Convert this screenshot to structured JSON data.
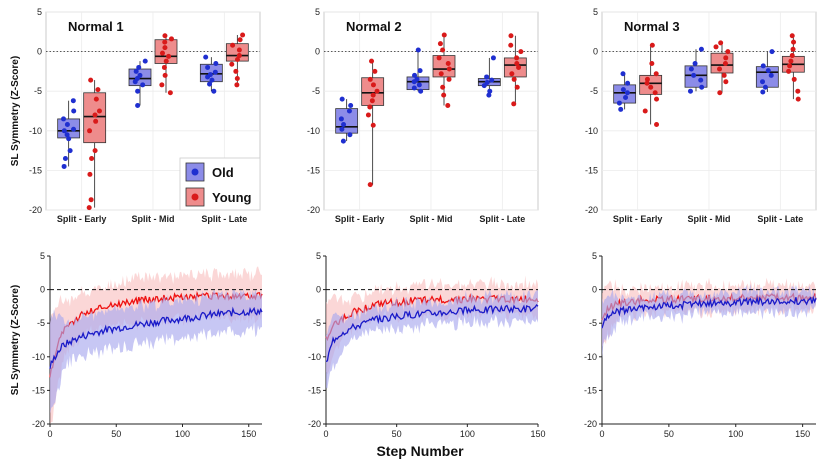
{
  "figure": {
    "top_ylabel": "SL Symmetry (Z-Score)",
    "bottom_ylabel": "SL Symmetry (Z-Score)",
    "bottom_xlabel": "Step Number",
    "legend": [
      {
        "label": "Old",
        "color": "#4b4bd6"
      },
      {
        "label": "Young",
        "color": "#e04545"
      }
    ]
  },
  "colors": {
    "old_point": "#1f2fd0",
    "old_box": "#8c8ce8",
    "young_point": "#d91a1a",
    "young_box": "#ee8c8c",
    "old_line": "#1a1ac8",
    "old_band": "#a9a9ee",
    "young_line": "#ee1111",
    "young_band": "#f7b7b7"
  },
  "chart_data": [
    {
      "type": "box",
      "title": "Normal 1",
      "ylim": [
        -20,
        5
      ],
      "yticks": [
        5,
        0,
        -5,
        -10,
        -15,
        -20
      ],
      "reference_line": 0,
      "categories": [
        "Split - Early",
        "Split - Mid",
        "Split - Late"
      ],
      "series": [
        {
          "name": "Old",
          "boxes": [
            {
              "min": -14.5,
              "q1": -10.9,
              "median": -10.0,
              "q3": -8.5,
              "max": -6.2,
              "points": [
                -6.2,
                -7.5,
                -8.5,
                -9.2,
                -9.8,
                -10.0,
                -10.5,
                -11.0,
                -12.5,
                -13.5,
                -14.5
              ]
            },
            {
              "min": -6.8,
              "q1": -4.3,
              "median": -3.4,
              "q3": -2.2,
              "max": -1.2,
              "points": [
                -1.2,
                -2.0,
                -2.5,
                -3.0,
                -3.4,
                -3.8,
                -4.2,
                -5.0,
                -6.8
              ]
            },
            {
              "min": -5.0,
              "q1": -3.8,
              "median": -2.8,
              "q3": -1.6,
              "max": -0.7,
              "points": [
                -0.7,
                -1.5,
                -2.0,
                -2.6,
                -2.9,
                -3.2,
                -3.6,
                -4.1,
                -5.0
              ]
            }
          ]
        },
        {
          "name": "Young",
          "boxes": [
            {
              "min": -19.7,
              "q1": -11.5,
              "median": -8.2,
              "q3": -5.2,
              "max": -3.6,
              "points": [
                -3.6,
                -4.8,
                -6.0,
                -7.5,
                -8.0,
                -8.8,
                -10.0,
                -12.5,
                -13.5,
                -15.5,
                -18.7,
                -19.7
              ]
            },
            {
              "min": -5.2,
              "q1": -1.5,
              "median": -0.6,
              "q3": 1.5,
              "max": 2.0,
              "points": [
                2.0,
                1.6,
                1.2,
                0.5,
                -0.2,
                -0.6,
                -1.2,
                -2.0,
                -3.0,
                -4.2,
                -5.2
              ]
            },
            {
              "min": -4.2,
              "q1": -1.2,
              "median": -0.5,
              "q3": 1.0,
              "max": 2.1,
              "points": [
                2.1,
                1.5,
                0.8,
                0.2,
                -0.5,
                -1.0,
                -1.6,
                -2.5,
                -3.4,
                -4.2
              ]
            }
          ]
        }
      ]
    },
    {
      "type": "box",
      "title": "Normal 2",
      "ylim": [
        -20,
        5
      ],
      "yticks": [
        5,
        0,
        -5,
        -10,
        -15,
        -20
      ],
      "reference_line": 0,
      "categories": [
        "Split - Early",
        "Split - Mid",
        "Split - Late"
      ],
      "series": [
        {
          "name": "Old",
          "boxes": [
            {
              "min": -11.3,
              "q1": -10.3,
              "median": -9.5,
              "q3": -7.2,
              "max": -6.0,
              "points": [
                -6.0,
                -6.8,
                -7.5,
                -8.5,
                -9.2,
                -9.8,
                -10.5,
                -11.3
              ]
            },
            {
              "min": -5.0,
              "q1": -4.8,
              "median": -3.8,
              "q3": -3.2,
              "max": 0.2,
              "points": [
                0.2,
                -2.4,
                -3.0,
                -3.5,
                -3.8,
                -4.2,
                -4.6,
                -5.0
              ]
            },
            {
              "min": -5.5,
              "q1": -4.3,
              "median": -3.8,
              "q3": -3.4,
              "max": -0.8,
              "points": [
                -0.8,
                -3.2,
                -3.6,
                -3.9,
                -4.3,
                -5.0,
                -5.5
              ]
            }
          ]
        },
        {
          "name": "Young",
          "boxes": [
            {
              "min": -16.8,
              "q1": -6.8,
              "median": -5.2,
              "q3": -3.3,
              "max": -1.2,
              "points": [
                -1.2,
                -2.5,
                -3.5,
                -4.2,
                -5.0,
                -5.5,
                -6.2,
                -7.0,
                -8.0,
                -9.3,
                -16.8
              ]
            },
            {
              "min": -6.8,
              "q1": -3.2,
              "median": -2.2,
              "q3": -0.5,
              "max": 2.1,
              "points": [
                2.1,
                1.0,
                0.2,
                -0.8,
                -1.5,
                -2.2,
                -2.8,
                -3.5,
                -4.5,
                -5.5,
                -6.8
              ]
            },
            {
              "min": -6.6,
              "q1": -3.2,
              "median": -1.7,
              "q3": -0.8,
              "max": 2.0,
              "points": [
                2.0,
                0.8,
                0.0,
                -0.8,
                -1.5,
                -2.0,
                -2.8,
                -3.5,
                -4.5,
                -6.6
              ]
            }
          ]
        }
      ]
    },
    {
      "type": "box",
      "title": "Normal 3",
      "ylim": [
        -20,
        5
      ],
      "yticks": [
        5,
        0,
        -5,
        -10,
        -15,
        -20
      ],
      "reference_line": 0,
      "categories": [
        "Split - Early",
        "Split - Mid",
        "Split - Late"
      ],
      "series": [
        {
          "name": "Old",
          "boxes": [
            {
              "min": -7.3,
              "q1": -6.5,
              "median": -5.2,
              "q3": -4.2,
              "max": -2.8,
              "points": [
                -2.8,
                -4.0,
                -4.8,
                -5.2,
                -5.8,
                -6.5,
                -7.3
              ]
            },
            {
              "min": -5.0,
              "q1": -4.5,
              "median": -3.0,
              "q3": -1.8,
              "max": 0.3,
              "points": [
                0.3,
                -1.5,
                -2.2,
                -3.0,
                -3.6,
                -4.5,
                -5.0
              ]
            },
            {
              "min": -5.1,
              "q1": -4.5,
              "median": -2.6,
              "q3": -1.9,
              "max": 0.0,
              "points": [
                0.0,
                -1.8,
                -2.4,
                -3.0,
                -3.8,
                -4.5,
                -5.1
              ]
            }
          ]
        },
        {
          "name": "Young",
          "boxes": [
            {
              "min": -9.2,
              "q1": -5.4,
              "median": -4.0,
              "q3": -3.0,
              "max": 0.8,
              "points": [
                0.8,
                -1.5,
                -2.8,
                -3.5,
                -4.0,
                -4.5,
                -5.2,
                -6.0,
                -7.5,
                -9.2
              ]
            },
            {
              "min": -5.2,
              "q1": -2.7,
              "median": -1.7,
              "q3": -0.2,
              "max": 1.1,
              "points": [
                1.1,
                0.6,
                0.0,
                -0.8,
                -1.5,
                -2.2,
                -3.0,
                -3.8,
                -5.2
              ]
            },
            {
              "min": -6.0,
              "q1": -2.6,
              "median": -1.6,
              "q3": -0.6,
              "max": 2.0,
              "points": [
                2.0,
                1.2,
                0.3,
                -0.5,
                -1.2,
                -1.8,
                -2.5,
                -3.5,
                -5.0,
                -6.0
              ]
            }
          ]
        }
      ]
    },
    {
      "type": "area",
      "ylim": [
        -20,
        5
      ],
      "xlim": [
        0,
        160
      ],
      "xticks": [
        0,
        50,
        100,
        150
      ],
      "yticks": [
        5,
        0,
        -5,
        -10,
        -15,
        -20
      ],
      "reference_line": 0,
      "series": [
        {
          "name": "Old",
          "x": [
            0,
            5,
            10,
            20,
            30,
            40,
            60,
            80,
            100,
            120,
            140,
            160
          ],
          "mean": [
            -11.5,
            -9.5,
            -8.3,
            -7.3,
            -6.6,
            -6.1,
            -5.4,
            -4.8,
            -4.3,
            -3.8,
            -3.4,
            -3.2
          ],
          "band": 2.8
        },
        {
          "name": "Young",
          "x": [
            0,
            5,
            10,
            20,
            30,
            40,
            60,
            80,
            100,
            120,
            140,
            160
          ],
          "mean": [
            -13.0,
            -8.5,
            -6.2,
            -4.3,
            -3.2,
            -2.5,
            -1.8,
            -1.3,
            -1.1,
            -1.0,
            -1.0,
            -1.0
          ],
          "band": 3.2
        }
      ]
    },
    {
      "type": "area",
      "ylim": [
        -20,
        5
      ],
      "xlim": [
        0,
        150
      ],
      "xticks": [
        0,
        50,
        100,
        150
      ],
      "yticks": [
        5,
        0,
        -5,
        -10,
        -15,
        -20
      ],
      "reference_line": 0,
      "series": [
        {
          "name": "Old",
          "x": [
            0,
            5,
            10,
            20,
            30,
            40,
            60,
            80,
            100,
            120,
            150
          ],
          "mean": [
            -11.0,
            -7.5,
            -6.5,
            -5.5,
            -4.8,
            -4.3,
            -3.7,
            -3.4,
            -3.1,
            -2.9,
            -2.8
          ],
          "band": 1.8
        },
        {
          "name": "Young",
          "x": [
            0,
            5,
            10,
            20,
            30,
            40,
            60,
            80,
            100,
            120,
            150
          ],
          "mean": [
            -7.5,
            -5.5,
            -4.5,
            -3.3,
            -2.6,
            -2.1,
            -1.7,
            -1.5,
            -1.4,
            -1.4,
            -1.4
          ],
          "band": 2.2
        }
      ]
    },
    {
      "type": "area",
      "ylim": [
        -20,
        5
      ],
      "xlim": [
        0,
        160
      ],
      "xticks": [
        0,
        50,
        100,
        150
      ],
      "yticks": [
        5,
        0,
        -5,
        -10,
        -15,
        -20
      ],
      "reference_line": 0,
      "series": [
        {
          "name": "Old",
          "x": [
            0,
            5,
            10,
            20,
            30,
            40,
            60,
            80,
            100,
            120,
            140,
            160
          ],
          "mean": [
            -5.5,
            -4.0,
            -3.4,
            -2.9,
            -2.7,
            -2.5,
            -2.3,
            -2.1,
            -1.9,
            -1.8,
            -1.7,
            -1.6
          ],
          "band": 1.5
        },
        {
          "name": "Young",
          "x": [
            0,
            5,
            10,
            20,
            30,
            40,
            60,
            80,
            100,
            120,
            140,
            160
          ],
          "mean": [
            -4.5,
            -2.8,
            -2.2,
            -1.8,
            -1.6,
            -1.5,
            -1.4,
            -1.3,
            -1.2,
            -1.2,
            -1.2,
            -1.2
          ],
          "band": 1.8
        }
      ]
    }
  ]
}
